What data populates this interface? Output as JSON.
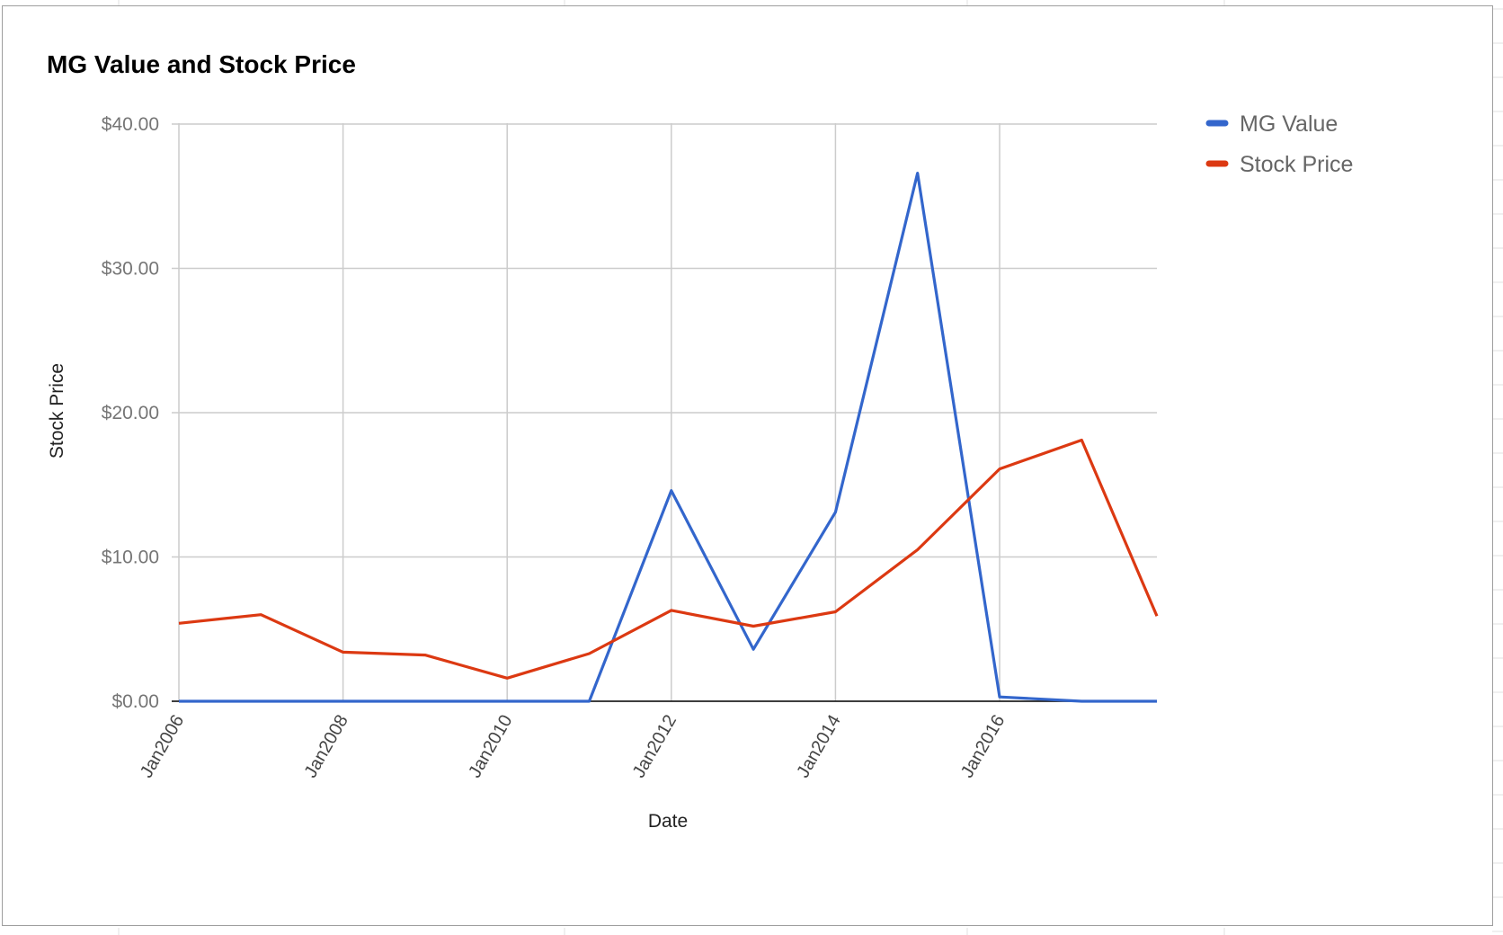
{
  "chart_data": {
    "type": "line",
    "title": "MG Value and Stock Price",
    "xlabel": "Date",
    "ylabel": "Stock Price",
    "x": [
      "2006-01",
      "2007-01",
      "2008-01",
      "2009-01",
      "2010-01",
      "2011-01",
      "2012-01",
      "2013-01",
      "2014-01",
      "2015-01",
      "2016-01",
      "2017-01",
      "2017-12"
    ],
    "xlim": [
      "2006-01",
      "2017-12"
    ],
    "xticks": [
      {
        "date": "2006-01",
        "label": "Jan2006"
      },
      {
        "date": "2008-01",
        "label": "Jan2008"
      },
      {
        "date": "2010-01",
        "label": "Jan2010"
      },
      {
        "date": "2012-01",
        "label": "Jan2012"
      },
      {
        "date": "2014-01",
        "label": "Jan2014"
      },
      {
        "date": "2016-01",
        "label": "Jan2016"
      }
    ],
    "ylim": [
      0,
      40
    ],
    "yticks": [
      {
        "value": 0,
        "label": "$0.00"
      },
      {
        "value": 10,
        "label": "$10.00"
      },
      {
        "value": 20,
        "label": "$20.00"
      },
      {
        "value": 30,
        "label": "$30.00"
      },
      {
        "value": 40,
        "label": "$40.00"
      }
    ],
    "grid": true,
    "legend_position": "right",
    "series": [
      {
        "name": "MG Value",
        "color": "#3366cc",
        "values": [
          0,
          0,
          0,
          0,
          0,
          0,
          14.6,
          3.6,
          13.1,
          36.6,
          0.3,
          0,
          0
        ]
      },
      {
        "name": "Stock Price",
        "color": "#dc3912",
        "values": [
          5.4,
          6.0,
          3.4,
          3.2,
          1.6,
          3.3,
          6.3,
          5.2,
          6.2,
          10.5,
          16.1,
          18.1,
          5.9
        ]
      }
    ]
  }
}
